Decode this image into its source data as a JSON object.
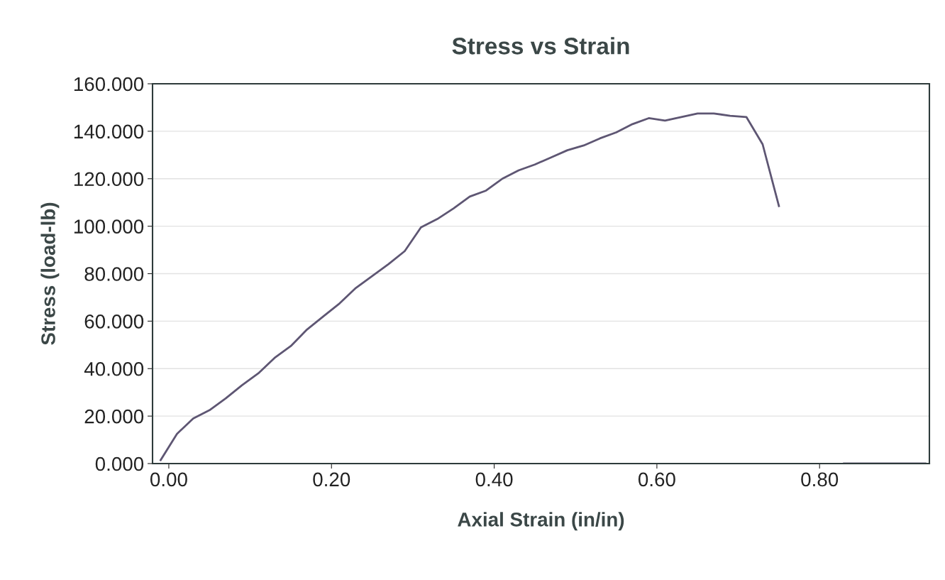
{
  "chart_data": {
    "type": "line",
    "title": "Stress vs Strain",
    "xlabel": "Axial Strain (in/in)",
    "ylabel": "Stress (load-lb)",
    "x": [
      -0.01,
      0.01,
      0.03,
      0.05,
      0.07,
      0.09,
      0.11,
      0.13,
      0.15,
      0.17,
      0.19,
      0.21,
      0.23,
      0.25,
      0.27,
      0.29,
      0.31,
      0.33,
      0.35,
      0.37,
      0.39,
      0.41,
      0.43,
      0.45,
      0.47,
      0.49,
      0.51,
      0.53,
      0.55,
      0.57,
      0.59,
      0.61,
      0.63,
      0.65,
      0.67,
      0.69,
      0.71,
      0.73,
      0.75,
      0.79,
      0.83,
      0.93
    ],
    "series": [
      {
        "color": "#5e5673",
        "values": [
          1.5,
          12.5,
          19,
          22.5,
          27.5,
          33,
          38,
          44.5,
          49.5,
          56.5,
          62,
          67.5,
          74,
          79,
          84,
          89.5,
          99.5,
          103,
          107.5,
          112.5,
          115,
          120,
          123.5,
          126,
          129,
          132,
          134,
          137,
          139.5,
          143,
          145.5,
          144.5,
          146,
          147.5,
          147.5,
          146.5,
          146,
          134.5,
          108.5,
          null,
          0,
          0
        ]
      }
    ],
    "xlim": [
      -0.02,
      0.935
    ],
    "ylim": [
      0,
      160
    ],
    "xticks": [
      {
        "value": 0,
        "label": "0.00"
      },
      {
        "value": 0.2,
        "label": "0.20"
      },
      {
        "value": 0.4,
        "label": "0.40"
      },
      {
        "value": 0.6,
        "label": "0.60"
      },
      {
        "value": 0.8,
        "label": "0.80"
      }
    ],
    "yticks": [
      {
        "value": 0,
        "label": "0.000"
      },
      {
        "value": 20,
        "label": "20.000"
      },
      {
        "value": 40,
        "label": "40.000"
      },
      {
        "value": 60,
        "label": "60.000"
      },
      {
        "value": 80,
        "label": "80.000"
      },
      {
        "value": 100,
        "label": "100.000"
      },
      {
        "value": 120,
        "label": "120.000"
      },
      {
        "value": 140,
        "label": "140.000"
      },
      {
        "value": 160,
        "label": "160.000"
      }
    ],
    "grid": "y",
    "marker": "none",
    "line_style": "solid"
  }
}
